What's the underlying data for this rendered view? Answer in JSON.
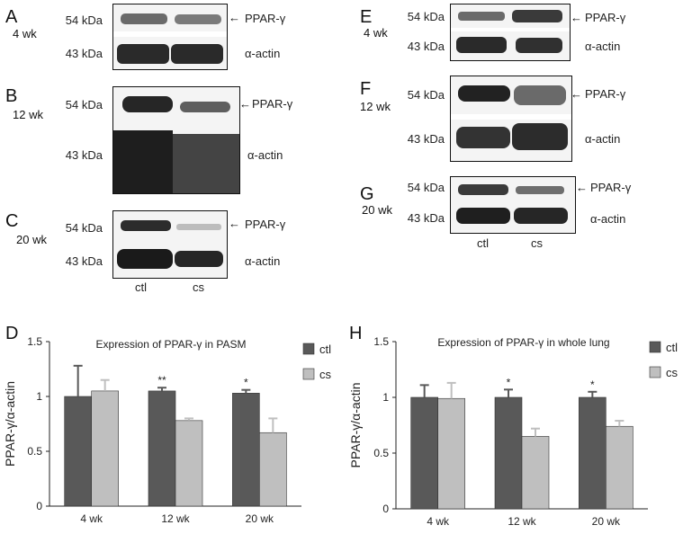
{
  "panel_letters": [
    "A",
    "B",
    "C",
    "D",
    "E",
    "F",
    "G",
    "H"
  ],
  "ages": {
    "w4": "4 wk",
    "w12": "12 wk",
    "w20": "20 wk"
  },
  "markers": {
    "kda54": "54 kDa",
    "kda43": "43 kDa"
  },
  "bands": {
    "ppar": "PPAR-γ",
    "actin": "α-actin"
  },
  "lanes": {
    "ctl": "ctl",
    "cs": "cs"
  },
  "colors": {
    "ctl": "#595959",
    "cs": "#bfbfbf"
  },
  "chart_data": [
    {
      "type": "bar",
      "panel": "D",
      "title": "Expression of PPAR-γ in PASM",
      "ylabel": "PPAR-γ/α-actin",
      "ylim": [
        0,
        1.5
      ],
      "yticks": [
        "0",
        "0.5",
        "1",
        "1.5"
      ],
      "categories": [
        "4 wk",
        "12 wk",
        "20 wk"
      ],
      "series": [
        {
          "name": "ctl",
          "values": [
            1.0,
            1.05,
            1.03
          ],
          "errors": [
            0.28,
            0.03,
            0.03
          ]
        },
        {
          "name": "cs",
          "values": [
            1.05,
            0.78,
            0.67
          ],
          "errors": [
            0.1,
            0.02,
            0.13
          ]
        }
      ],
      "annotations": [
        "",
        "**",
        "*"
      ],
      "legend": "top-right"
    },
    {
      "type": "bar",
      "panel": "H",
      "title": "Expression of PPAR-γ in whole lung",
      "ylabel": "PPAR-γ/α-actin",
      "ylim": [
        0,
        1.5
      ],
      "yticks": [
        "0",
        "0.5",
        "1",
        "1.5"
      ],
      "categories": [
        "4 wk",
        "12 wk",
        "20 wk"
      ],
      "series": [
        {
          "name": "ctl",
          "values": [
            1.0,
            1.0,
            1.0
          ],
          "errors": [
            0.11,
            0.07,
            0.05
          ]
        },
        {
          "name": "cs",
          "values": [
            0.99,
            0.65,
            0.74
          ],
          "errors": [
            0.14,
            0.07,
            0.05
          ]
        }
      ],
      "annotations": [
        "",
        "*",
        "*"
      ],
      "legend": "top-right"
    }
  ]
}
